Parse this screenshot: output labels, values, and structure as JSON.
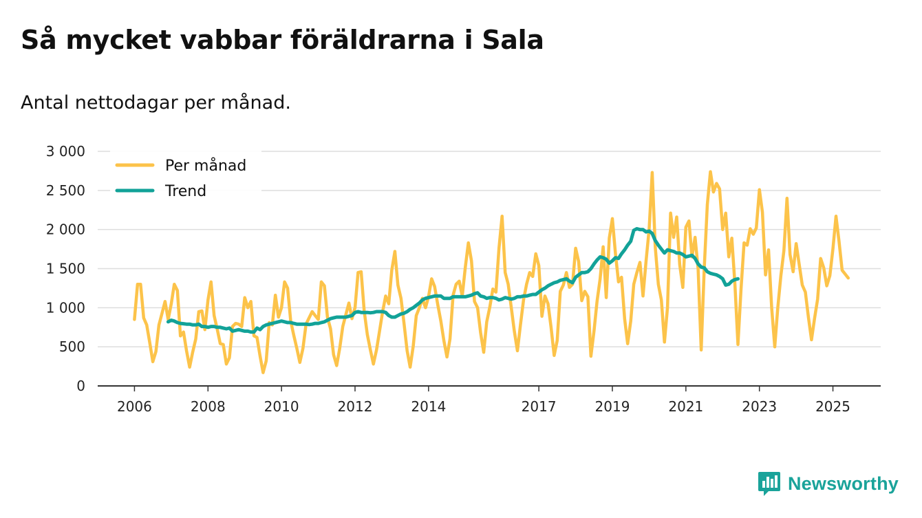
{
  "title": "Så mycket vabbar föräldrarna i Sala",
  "subtitle": "Antal nettodagar per månad.",
  "brand": {
    "name": "Newsworthy",
    "icon": "newsworthy-logo-icon"
  },
  "colors": {
    "per_month": "#fcc34a",
    "trend": "#12a298",
    "grid": "#dddddd",
    "axis": "#333333",
    "brand": "#1aa39a"
  },
  "chart_data": {
    "type": "line",
    "title": "Så mycket vabbar föräldrarna i Sala",
    "subtitle": "Antal nettodagar per månad.",
    "xlabel": "",
    "ylabel": "",
    "ylim": [
      0,
      3000
    ],
    "xlim": [
      2005.0,
      2026.3
    ],
    "grid": true,
    "legend_position": "top-left",
    "y_ticks": [
      {
        "value": 0,
        "label": "0"
      },
      {
        "value": 500,
        "label": "500"
      },
      {
        "value": 1000,
        "label": "1 000"
      },
      {
        "value": 1500,
        "label": "1 500"
      },
      {
        "value": 2000,
        "label": "2 000"
      },
      {
        "value": 2500,
        "label": "2 500"
      },
      {
        "value": 3000,
        "label": "3 000"
      }
    ],
    "x_ticks": [
      {
        "value": 2006,
        "label": "2006"
      },
      {
        "value": 2008,
        "label": "2008"
      },
      {
        "value": 2010,
        "label": "2010"
      },
      {
        "value": 2012,
        "label": "2012"
      },
      {
        "value": 2014,
        "label": "2014"
      },
      {
        "value": 2017,
        "label": "2017"
      },
      {
        "value": 2019,
        "label": "2019"
      },
      {
        "value": 2021,
        "label": "2021"
      },
      {
        "value": 2023,
        "label": "2023"
      },
      {
        "value": 2025,
        "label": "2025"
      }
    ],
    "series": [
      {
        "name": "Per månad",
        "color": "#fcc34a",
        "start": 2006.0,
        "step_months": 1,
        "values": [
          850,
          1300,
          1300,
          870,
          780,
          550,
          310,
          440,
          780,
          930,
          1080,
          850,
          1050,
          1300,
          1220,
          640,
          690,
          450,
          240,
          430,
          600,
          950,
          960,
          720,
          1100,
          1330,
          900,
          730,
          540,
          530,
          280,
          360,
          760,
          800,
          790,
          760,
          1130,
          1000,
          1080,
          640,
          620,
          380,
          170,
          320,
          810,
          780,
          1160,
          880,
          1000,
          1330,
          1250,
          830,
          650,
          480,
          300,
          480,
          790,
          870,
          950,
          900,
          850,
          1330,
          1280,
          880,
          730,
          400,
          260,
          480,
          760,
          910,
          1060,
          860,
          1000,
          1450,
          1460,
          960,
          660,
          460,
          280,
          460,
          700,
          950,
          1150,
          1050,
          1480,
          1720,
          1290,
          1120,
          800,
          450,
          240,
          510,
          900,
          1000,
          1120,
          1000,
          1140,
          1370,
          1270,
          1040,
          830,
          580,
          370,
          600,
          1160,
          1300,
          1340,
          1150,
          1520,
          1830,
          1600,
          1080,
          1000,
          680,
          430,
          820,
          1010,
          1240,
          1200,
          1760,
          2170,
          1450,
          1300,
          1000,
          700,
          450,
          780,
          1100,
          1300,
          1450,
          1400,
          1690,
          1540,
          890,
          1150,
          1050,
          750,
          390,
          580,
          1210,
          1290,
          1450,
          1260,
          1300,
          1760,
          1590,
          1090,
          1210,
          1140,
          380,
          700,
          1080,
          1370,
          1780,
          1130,
          1890,
          2140,
          1700,
          1330,
          1390,
          860,
          540,
          830,
          1300,
          1450,
          1580,
          1150,
          1600,
          2000,
          2730,
          1780,
          1300,
          1100,
          560,
          1000,
          2210,
          1900,
          2160,
          1550,
          1260,
          2030,
          2110,
          1650,
          1900,
          1500,
          460,
          1500,
          2320,
          2740,
          2480,
          2590,
          2520,
          2000,
          2210,
          1650,
          1890,
          1300,
          530,
          1240,
          1830,
          1800,
          2010,
          1940,
          2020,
          2510,
          2220,
          1420,
          1740,
          1000,
          500,
          1000,
          1410,
          1730,
          2400,
          1680,
          1460,
          1820,
          1550,
          1290,
          1200,
          880,
          590,
          860,
          1110,
          1630,
          1510,
          1280,
          1410,
          1750,
          2170,
          1850,
          1480,
          1430,
          1380
        ]
      },
      {
        "name": "Trend",
        "color": "#12a298",
        "start": 2006.9167,
        "step_months": 1,
        "values": [
          820,
          840,
          830,
          810,
          800,
          795,
          790,
          790,
          780,
          780,
          790,
          760,
          760,
          750,
          760,
          760,
          750,
          750,
          740,
          730,
          740,
          700,
          710,
          720,
          710,
          700,
          700,
          690,
          690,
          740,
          720,
          760,
          780,
          790,
          800,
          810,
          820,
          830,
          820,
          810,
          810,
          800,
          790,
          790,
          790,
          790,
          785,
          790,
          800,
          800,
          810,
          820,
          840,
          860,
          870,
          880,
          880,
          880,
          880,
          890,
          900,
          940,
          950,
          940,
          940,
          940,
          935,
          940,
          950,
          950,
          950,
          940,
          900,
          880,
          880,
          900,
          920,
          930,
          950,
          980,
          1000,
          1030,
          1060,
          1100,
          1120,
          1130,
          1140,
          1150,
          1150,
          1150,
          1120,
          1120,
          1120,
          1140,
          1140,
          1140,
          1140,
          1140,
          1150,
          1160,
          1180,
          1190,
          1150,
          1140,
          1120,
          1130,
          1130,
          1120,
          1100,
          1110,
          1130,
          1120,
          1110,
          1120,
          1140,
          1140,
          1150,
          1150,
          1160,
          1170,
          1170,
          1200,
          1230,
          1250,
          1280,
          1300,
          1320,
          1330,
          1350,
          1360,
          1370,
          1340,
          1320,
          1390,
          1420,
          1450,
          1450,
          1460,
          1500,
          1560,
          1610,
          1650,
          1640,
          1620,
          1570,
          1600,
          1640,
          1630,
          1690,
          1740,
          1800,
          1850,
          1990,
          2010,
          2000,
          2000,
          1970,
          1980,
          1950,
          1860,
          1800,
          1750,
          1700,
          1740,
          1730,
          1720,
          1700,
          1700,
          1680,
          1650,
          1660,
          1670,
          1630,
          1560,
          1520,
          1510,
          1460,
          1440,
          1430,
          1420,
          1400,
          1370,
          1290,
          1300,
          1340,
          1360,
          1370
        ]
      }
    ]
  }
}
